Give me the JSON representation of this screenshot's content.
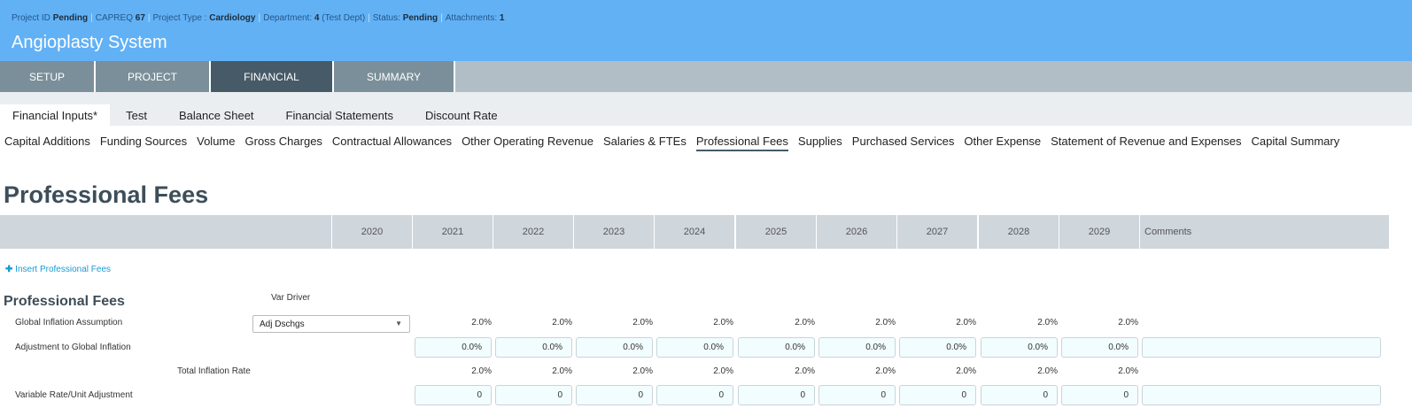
{
  "header": {
    "project_id_label": "Project ID",
    "project_id": "Pending",
    "capreq_label": "CAPREQ",
    "capreq": "67",
    "type_label": "Project Type :",
    "type": "Cardiology",
    "dept_label": "Department:",
    "dept": "4",
    "dept_name": "(Test Dept)",
    "status_label": "Status:",
    "status": "Pending",
    "attach_label": "Attachments:",
    "attach": "1",
    "title": "Angioplasty System"
  },
  "tabs": [
    "SETUP",
    "PROJECT",
    "FINANCIAL",
    "SUMMARY"
  ],
  "subtabs": [
    "Financial Inputs*",
    "Test",
    "Balance Sheet",
    "Financial Statements",
    "Discount Rate"
  ],
  "nav": [
    "Capital Additions",
    "Funding Sources",
    "Volume",
    "Gross Charges",
    "Contractual Allowances",
    "Other Operating Revenue",
    "Salaries & FTEs",
    "Professional Fees",
    "Supplies",
    "Purchased Services",
    "Other Expense",
    "Statement of Revenue and Expenses",
    "Capital Summary"
  ],
  "page_title": "Professional Fees",
  "years": [
    "2020",
    "2021",
    "2022",
    "2023",
    "2024",
    "2025",
    "2026",
    "2027",
    "2028",
    "2029"
  ],
  "comments_label": "Comments",
  "insert_label": "Insert Professional Fees",
  "section": {
    "title": "Professional Fees",
    "var_driver_label": "Var Driver",
    "var_driver": "Adj Dschgs",
    "rows": {
      "global": "Global Inflation Assumption",
      "adjust": "Adjustment to Global Inflation",
      "total": "Total Inflation Rate",
      "variable": "Variable Rate/Unit Adjustment"
    },
    "global_values": [
      "2.0%",
      "2.0%",
      "2.0%",
      "2.0%",
      "2.0%",
      "2.0%",
      "2.0%",
      "2.0%",
      "2.0%"
    ],
    "adjust_values": [
      "0.0%",
      "0.0%",
      "0.0%",
      "0.0%",
      "0.0%",
      "0.0%",
      "0.0%",
      "0.0%",
      "0.0%"
    ],
    "total_values": [
      "2.0%",
      "2.0%",
      "2.0%",
      "2.0%",
      "2.0%",
      "2.0%",
      "2.0%",
      "2.0%",
      "2.0%"
    ],
    "variable_values": [
      "0",
      "0",
      "0",
      "0",
      "0",
      "0",
      "0",
      "0",
      "0"
    ]
  }
}
